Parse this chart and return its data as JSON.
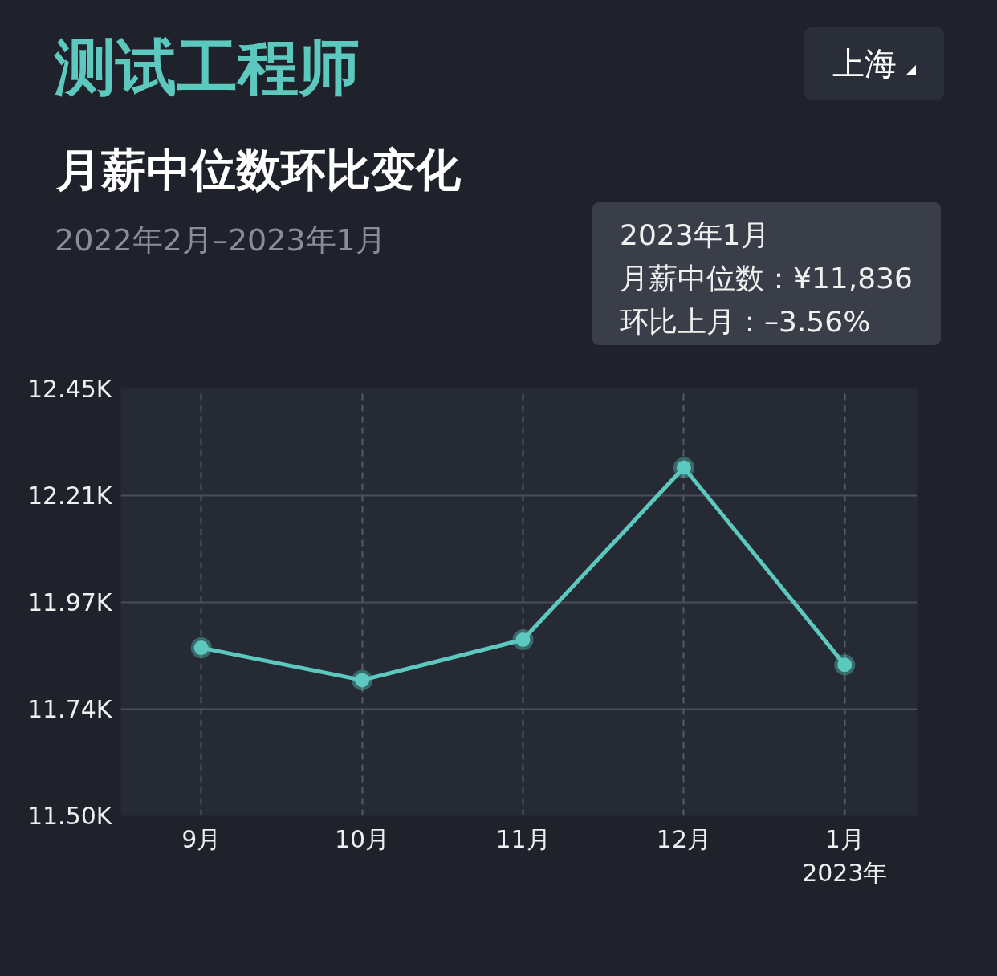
{
  "chart_data": {
    "type": "line",
    "title": "测试工程师",
    "subtitle": "月薪中位数环比变化",
    "annotations": [
      "2022年2月–2023年1月",
      "上海",
      "2023年1月",
      "月薪中位数：¥11,836",
      "环比上月：–3.56%"
    ],
    "categories": [
      "9月",
      "10月",
      "11月",
      "12月",
      "1月\n2023年"
    ],
    "series": [
      {
        "color": "#5cc8be",
        "values": [
          11874,
          11802,
          11892,
          12275,
          11836
        ]
      }
    ],
    "ylim": [
      11500,
      12450
    ],
    "yticks": [
      {
        "value": 11500,
        "label": "11.50K"
      },
      {
        "value": 11737.5,
        "label": "11.74K"
      },
      {
        "value": 11975,
        "label": "11.97K"
      },
      {
        "value": 12212.5,
        "label": "12.21K"
      },
      {
        "value": 12450,
        "label": "12.45K"
      }
    ],
    "grid": true,
    "marker": "circle"
  }
}
